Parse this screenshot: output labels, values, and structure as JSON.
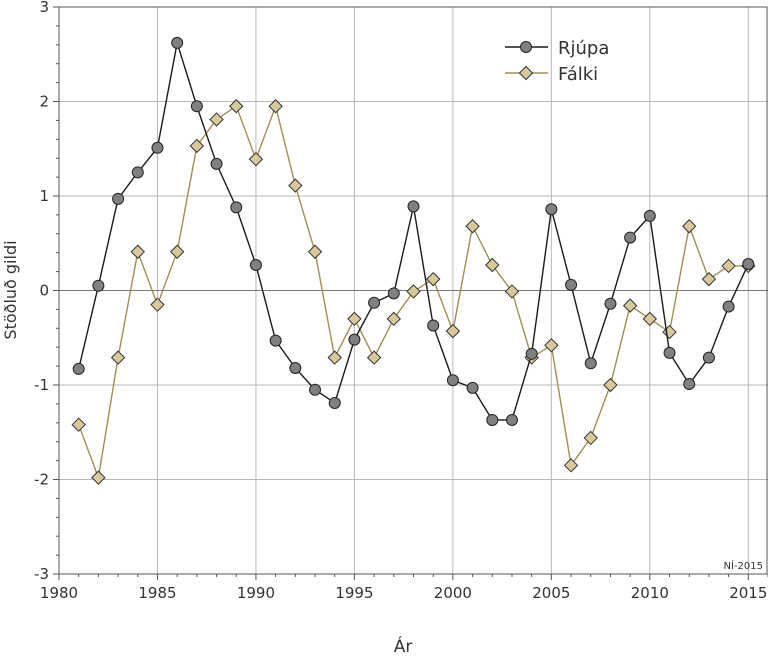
{
  "chart_data": {
    "type": "line",
    "xlabel": "Ár",
    "ylabel": "Stöðluð gildi",
    "xlim": [
      1980,
      2016
    ],
    "ylim": [
      -3,
      3
    ],
    "xticks": [
      1980,
      1985,
      1990,
      1995,
      2000,
      2005,
      2010,
      2015
    ],
    "yticks": [
      -3,
      -2,
      -1,
      0,
      1,
      2,
      3
    ],
    "grid": true,
    "legend": "top-right",
    "annotation": "NÍ-2015",
    "x": [
      1981,
      1982,
      1983,
      1984,
      1985,
      1986,
      1987,
      1988,
      1989,
      1990,
      1991,
      1992,
      1993,
      1994,
      1995,
      1996,
      1997,
      1998,
      1999,
      2000,
      2001,
      2002,
      2003,
      2004,
      2005,
      2006,
      2007,
      2008,
      2009,
      2010,
      2011,
      2012,
      2013,
      2014,
      2015
    ],
    "series": [
      {
        "name": "Rjúpa",
        "marker": "circle",
        "line_color": "#1a1a1a",
        "marker_color": "#808080",
        "values": [
          -0.83,
          0.05,
          0.97,
          1.25,
          1.51,
          2.62,
          1.95,
          1.34,
          0.88,
          0.27,
          -0.53,
          -0.82,
          -1.05,
          -1.19,
          -0.52,
          -0.13,
          -0.03,
          0.89,
          -0.37,
          -0.95,
          -1.03,
          -1.37,
          -1.37,
          -0.67,
          0.86,
          0.06,
          -0.77,
          -0.14,
          0.56,
          0.79,
          -0.66,
          -0.99,
          -0.71,
          -0.17,
          0.28
        ]
      },
      {
        "name": "Fálki",
        "marker": "diamond",
        "line_color": "#a08f55",
        "marker_color": "#d8c89a",
        "values": [
          -1.42,
          -1.98,
          -0.71,
          0.41,
          -0.15,
          0.41,
          1.53,
          1.81,
          1.95,
          1.39,
          1.95,
          1.11,
          0.41,
          -0.71,
          -0.3,
          -0.71,
          -0.3,
          -0.01,
          0.12,
          -0.43,
          0.68,
          0.27,
          -0.01,
          -0.71,
          -0.58,
          -1.85,
          -1.56,
          -1.0,
          -0.16,
          -0.3,
          -0.44,
          0.68,
          0.12,
          0.26,
          0.26
        ]
      }
    ]
  }
}
